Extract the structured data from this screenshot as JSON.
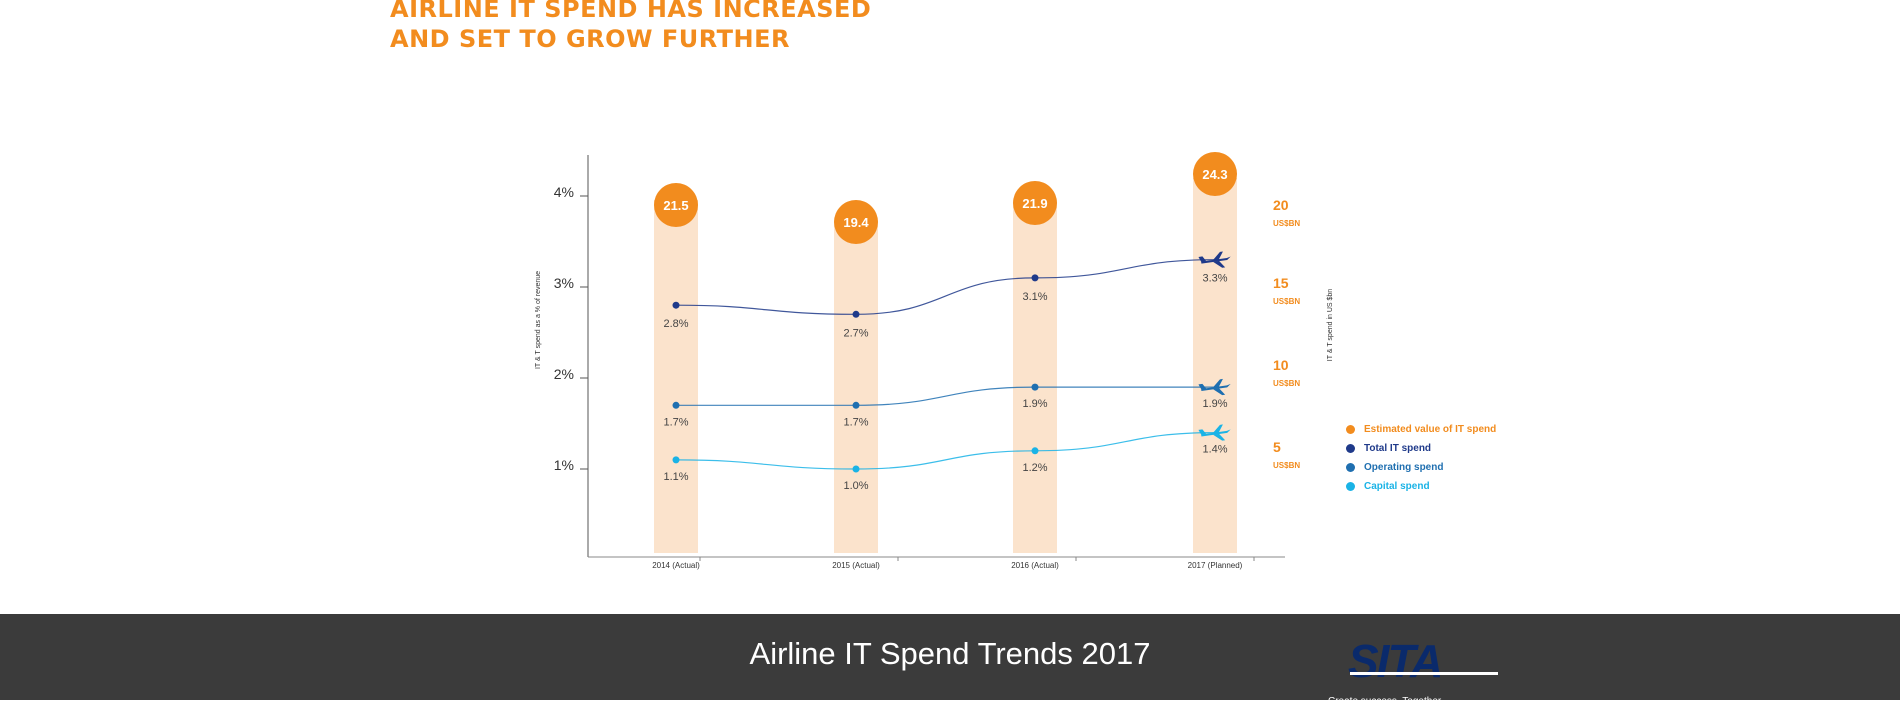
{
  "headline": {
    "line1": "AIRLINE IT SPEND HAS INCREASED",
    "line2": "AND SET TO GROW FURTHER"
  },
  "footer": {
    "title": "Airline IT Spend Trends 2017",
    "logo": "SITA",
    "tagline": "Create success. Together"
  },
  "colors": {
    "orange": "#f28c1e",
    "bar": "#fbe3cc",
    "total": "#1f3a8a",
    "operating": "#1f6fb0",
    "capital": "#1ab3e6"
  },
  "chart_data": {
    "type": "line",
    "categories": [
      "2014 (Actual)",
      "2015 (Actual)",
      "2016 (Actual)",
      "2017 (Planned)"
    ],
    "ylabel": "IT & T spend as a % of revenue",
    "y2label": "IT & T spend in US $bn",
    "y_ticks": [
      "4%",
      "3%",
      "2%",
      "1%"
    ],
    "y_tick_values": [
      4,
      3,
      2,
      1
    ],
    "ylim": [
      0,
      4.5
    ],
    "y2_ticks": [
      {
        "value": "20",
        "unit": "US$BN"
      },
      {
        "value": "15",
        "unit": "US$BN"
      },
      {
        "value": "10",
        "unit": "US$BN"
      },
      {
        "value": "5",
        "unit": "US$BN"
      }
    ],
    "y2_tick_values": [
      20,
      15,
      10,
      5
    ],
    "estimated_value": {
      "name": "Estimated value of IT spend",
      "values": [
        21.5,
        19.4,
        21.9,
        24.3
      ],
      "labels": [
        "21.5",
        "19.4",
        "21.9",
        "24.3"
      ]
    },
    "series": [
      {
        "name": "Total IT spend",
        "values": [
          2.8,
          2.7,
          3.1,
          3.3
        ],
        "labels": [
          "2.8%",
          "2.7%",
          "3.1%",
          "3.3%"
        ],
        "color": "#1f3a8a"
      },
      {
        "name": "Operating spend",
        "values": [
          1.7,
          1.7,
          1.9,
          1.9
        ],
        "labels": [
          "1.7%",
          "1.7%",
          "1.9%",
          "1.9%"
        ],
        "color": "#1f6fb0"
      },
      {
        "name": "Capital spend",
        "values": [
          1.1,
          1.0,
          1.2,
          1.4
        ],
        "labels": [
          "1.1%",
          "1.0%",
          "1.2%",
          "1.4%"
        ],
        "color": "#1ab3e6"
      }
    ],
    "legend": [
      {
        "label": "Estimated value of IT spend",
        "color": "#f28c1e"
      },
      {
        "label": "Total IT spend",
        "color": "#1f3a8a"
      },
      {
        "label": "Operating spend",
        "color": "#1f6fb0"
      },
      {
        "label": "Capital spend",
        "color": "#1ab3e6"
      }
    ],
    "legend_position": "right",
    "grid": false
  }
}
